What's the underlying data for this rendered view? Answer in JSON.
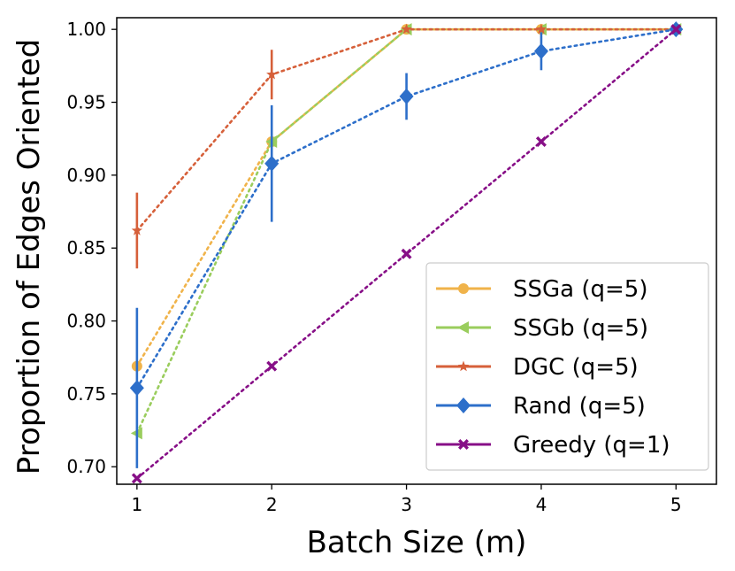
{
  "chart_data": {
    "type": "line",
    "title": "",
    "xlabel": "Batch Size (m)",
    "ylabel": "Proportion of Edges Oriented",
    "x": [
      1,
      2,
      3,
      4,
      5
    ],
    "xticks": [
      "1",
      "2",
      "3",
      "4",
      "5"
    ],
    "yticks": [
      "0.70",
      "0.75",
      "0.80",
      "0.85",
      "0.90",
      "0.95",
      "1.00"
    ],
    "ylim": [
      0.688,
      1.008
    ],
    "xlim": [
      0.85,
      5.3
    ],
    "legend_position": "lower-right",
    "series": [
      {
        "name": "SSGa (q=5)",
        "color": "#f0b34a",
        "marker": "circle",
        "values": [
          0.769,
          0.923,
          1.0,
          1.0,
          1.0
        ],
        "errors": [
          0,
          0,
          0,
          0,
          0
        ]
      },
      {
        "name": "SSGb (q=5)",
        "color": "#9acd5d",
        "marker": "triangle-left",
        "values": [
          0.723,
          0.923,
          1.0,
          1.0,
          1.0
        ],
        "errors": [
          0,
          0,
          0,
          0,
          0
        ]
      },
      {
        "name": "DGC (q=5)",
        "color": "#d6603a",
        "marker": "star",
        "values": [
          0.862,
          0.969,
          1.0,
          1.0,
          1.0
        ],
        "errors": [
          0.026,
          0.017,
          0,
          0,
          0
        ]
      },
      {
        "name": "Rand (q=5)",
        "color": "#2d6fca",
        "marker": "diamond",
        "values": [
          0.754,
          0.908,
          0.954,
          0.985,
          1.0
        ],
        "errors": [
          0.055,
          0.04,
          0.016,
          0.013,
          0
        ]
      },
      {
        "name": "Greedy (q=1)",
        "color": "#870f87",
        "marker": "x",
        "values": [
          0.692,
          0.769,
          0.846,
          0.923,
          1.0
        ],
        "errors": [
          0,
          0,
          0,
          0,
          0
        ]
      }
    ]
  }
}
